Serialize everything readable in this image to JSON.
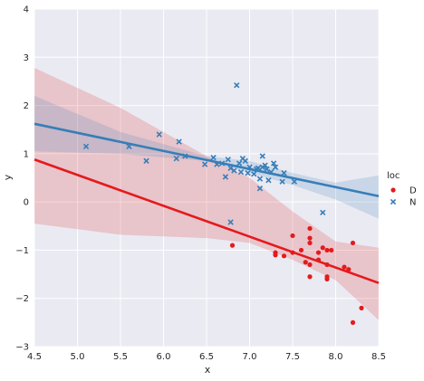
{
  "chart_data": {
    "type": "scatter",
    "title": "",
    "xlabel": "x",
    "ylabel": "y",
    "xlim": [
      4.5,
      8.5
    ],
    "ylim": [
      -3,
      4
    ],
    "xticks": [
      4.5,
      5.0,
      5.5,
      6.0,
      6.5,
      7.0,
      7.5,
      8.0,
      8.5
    ],
    "xtick_labels": [
      "4.5",
      "5.0",
      "5.5",
      "6.0",
      "6.5",
      "7.0",
      "7.5",
      "8.0",
      "8.5"
    ],
    "yticks": [
      -3,
      -2,
      -1,
      0,
      1,
      2,
      3,
      4
    ],
    "ytick_labels": [
      "−3",
      "−2",
      "−1",
      "0",
      "1",
      "2",
      "3",
      "4"
    ],
    "grid": true,
    "background": "#eaeaf2",
    "legend": {
      "title": "loc",
      "placement": "right",
      "entries": [
        {
          "label": "D",
          "marker": "circle",
          "color": "#e41a1c"
        },
        {
          "label": "N",
          "marker": "x",
          "color": "#377eb8"
        }
      ]
    },
    "series": [
      {
        "name": "D",
        "color": "#e41a1c",
        "marker": "circle",
        "regression": {
          "x": [
            4.5,
            8.5
          ],
          "y": [
            0.88,
            -1.68
          ]
        },
        "ci_band": {
          "x": [
            4.5,
            5.5,
            6.5,
            7.0,
            7.5,
            8.0,
            8.5
          ],
          "lower": [
            -0.45,
            -0.68,
            -0.75,
            -0.85,
            -1.2,
            -1.62,
            -2.45
          ],
          "upper": [
            2.78,
            1.95,
            0.95,
            0.5,
            -0.2,
            -0.82,
            -0.95
          ]
        },
        "points": [
          {
            "x": 6.8,
            "y": -0.9
          },
          {
            "x": 7.3,
            "y": -1.05
          },
          {
            "x": 7.3,
            "y": -1.1
          },
          {
            "x": 7.4,
            "y": -1.12
          },
          {
            "x": 7.5,
            "y": -0.7
          },
          {
            "x": 7.5,
            "y": -1.05
          },
          {
            "x": 7.6,
            "y": -1.0
          },
          {
            "x": 7.65,
            "y": -1.25
          },
          {
            "x": 7.7,
            "y": -0.55
          },
          {
            "x": 7.7,
            "y": -0.75
          },
          {
            "x": 7.7,
            "y": -0.85
          },
          {
            "x": 7.7,
            "y": -1.3
          },
          {
            "x": 7.7,
            "y": -1.55
          },
          {
            "x": 7.8,
            "y": -1.05
          },
          {
            "x": 7.8,
            "y": -1.2
          },
          {
            "x": 7.85,
            "y": -0.95
          },
          {
            "x": 7.9,
            "y": -1.0
          },
          {
            "x": 7.9,
            "y": -1.3
          },
          {
            "x": 7.9,
            "y": -1.55
          },
          {
            "x": 7.9,
            "y": -1.6
          },
          {
            "x": 7.95,
            "y": -1.0
          },
          {
            "x": 8.1,
            "y": -1.35
          },
          {
            "x": 8.15,
            "y": -1.4
          },
          {
            "x": 8.2,
            "y": -0.85
          },
          {
            "x": 8.2,
            "y": -2.5
          },
          {
            "x": 8.3,
            "y": -2.2
          }
        ]
      },
      {
        "name": "N",
        "color": "#377eb8",
        "marker": "x",
        "regression": {
          "x": [
            4.5,
            8.5
          ],
          "y": [
            1.62,
            0.12
          ]
        },
        "ci_band": {
          "x": [
            4.5,
            5.5,
            6.5,
            7.0,
            7.5,
            8.0,
            8.5
          ],
          "lower": [
            1.05,
            1.0,
            0.85,
            0.6,
            0.35,
            0.05,
            -0.35
          ],
          "upper": [
            2.2,
            1.45,
            0.95,
            0.85,
            0.6,
            0.4,
            0.55
          ]
        },
        "points": [
          {
            "x": 5.1,
            "y": 1.15
          },
          {
            "x": 5.6,
            "y": 1.15
          },
          {
            "x": 5.8,
            "y": 0.85
          },
          {
            "x": 5.95,
            "y": 1.4
          },
          {
            "x": 6.15,
            "y": 0.9
          },
          {
            "x": 6.18,
            "y": 1.25
          },
          {
            "x": 6.25,
            "y": 0.95
          },
          {
            "x": 6.48,
            "y": 0.78
          },
          {
            "x": 6.58,
            "y": 0.92
          },
          {
            "x": 6.62,
            "y": 0.78
          },
          {
            "x": 6.68,
            "y": 0.8
          },
          {
            "x": 6.72,
            "y": 0.52
          },
          {
            "x": 6.75,
            "y": 0.88
          },
          {
            "x": 6.78,
            "y": 0.7
          },
          {
            "x": 6.78,
            "y": -0.42
          },
          {
            "x": 6.82,
            "y": 0.65
          },
          {
            "x": 6.85,
            "y": 2.42
          },
          {
            "x": 6.88,
            "y": 0.8
          },
          {
            "x": 6.9,
            "y": 0.62
          },
          {
            "x": 6.92,
            "y": 0.9
          },
          {
            "x": 6.95,
            "y": 0.85
          },
          {
            "x": 6.98,
            "y": 0.6
          },
          {
            "x": 7.0,
            "y": 0.72
          },
          {
            "x": 7.05,
            "y": 0.58
          },
          {
            "x": 7.08,
            "y": 0.68
          },
          {
            "x": 7.1,
            "y": 0.7
          },
          {
            "x": 7.12,
            "y": 0.48
          },
          {
            "x": 7.12,
            "y": 0.28
          },
          {
            "x": 7.15,
            "y": 0.95
          },
          {
            "x": 7.15,
            "y": 0.72
          },
          {
            "x": 7.18,
            "y": 0.76
          },
          {
            "x": 7.2,
            "y": 0.68
          },
          {
            "x": 7.22,
            "y": 0.45
          },
          {
            "x": 7.25,
            "y": 0.62
          },
          {
            "x": 7.28,
            "y": 0.8
          },
          {
            "x": 7.3,
            "y": 0.72
          },
          {
            "x": 7.38,
            "y": 0.42
          },
          {
            "x": 7.4,
            "y": 0.6
          },
          {
            "x": 7.52,
            "y": 0.42
          },
          {
            "x": 7.85,
            "y": -0.22
          }
        ]
      }
    ]
  }
}
